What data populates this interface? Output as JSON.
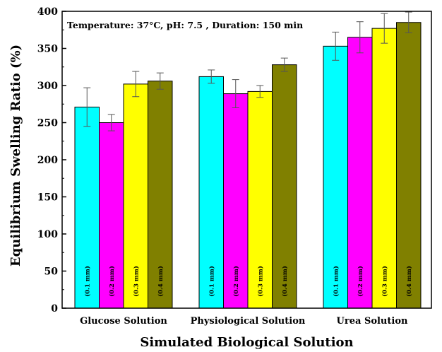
{
  "chart_data": {
    "type": "bar",
    "title": "",
    "annotation": "Temperature: 37°C, pH: 7.5 , Duration: 150 min",
    "xlabel": "Simulated Biological Solution",
    "ylabel": "Equilibrium Swelling Ratio (%)",
    "ylim": [
      0,
      400
    ],
    "yticks": [
      0,
      50,
      100,
      150,
      200,
      250,
      300,
      350,
      400
    ],
    "categories": [
      "Glucose Solution",
      "Physiological Solution",
      "Urea Solution"
    ],
    "legend": "none",
    "grid": false,
    "series": [
      {
        "label": "(0.1 mm)",
        "color": "#00ffff",
        "values": [
          271,
          312,
          353
        ],
        "errors": [
          26,
          9,
          19
        ]
      },
      {
        "label": "(0.2 mm)",
        "color": "#ff00ff",
        "values": [
          250,
          289,
          365
        ],
        "errors": [
          11,
          19,
          21
        ]
      },
      {
        "label": "(0.3 mm)",
        "color": "#ffff00",
        "values": [
          302,
          292,
          377
        ],
        "errors": [
          17,
          8,
          20
        ]
      },
      {
        "label": "(0.4 mm)",
        "color": "#808000",
        "values": [
          306,
          328,
          385
        ],
        "errors": [
          11,
          9,
          14
        ]
      }
    ]
  }
}
